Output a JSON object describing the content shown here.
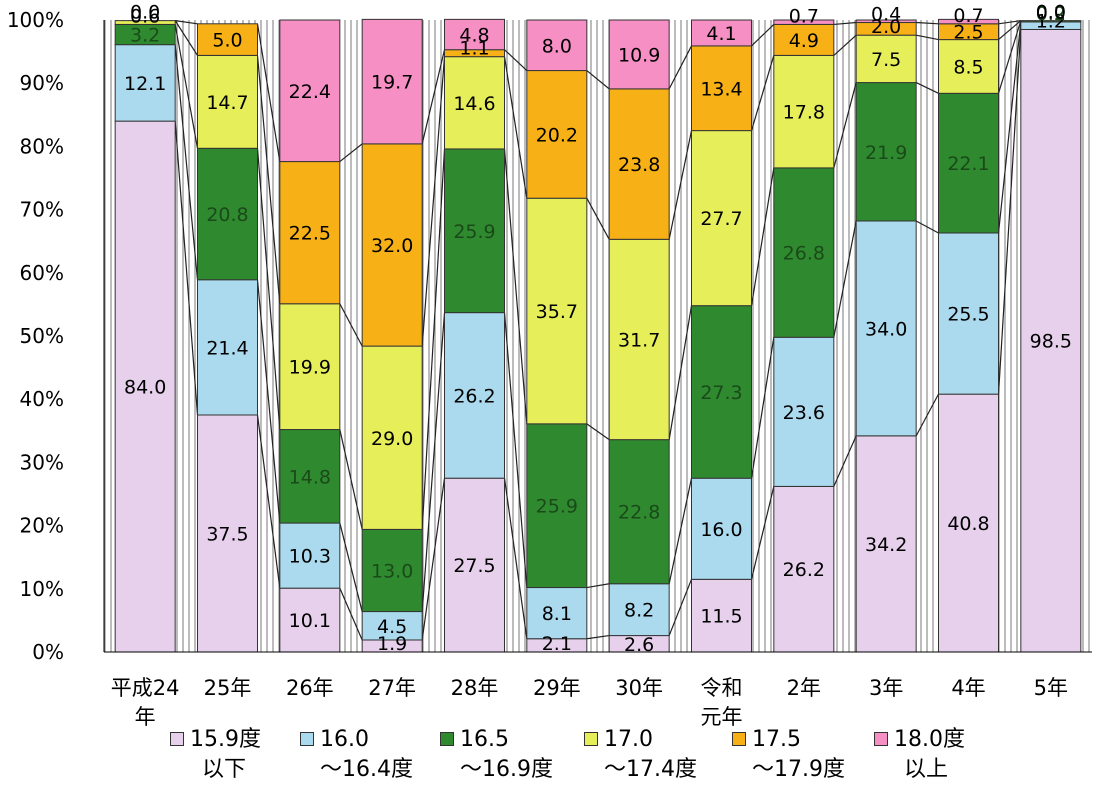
{
  "chart_data": {
    "type": "bar",
    "stacked": true,
    "y_tick_labels": [
      "0%",
      "10%",
      "20%",
      "30%",
      "40%",
      "50%",
      "60%",
      "70%",
      "80%",
      "90%",
      "100%"
    ],
    "ylim": [
      0,
      100
    ],
    "categories": [
      {
        "line1": "平成24",
        "line2": "年"
      },
      {
        "line1": "25年",
        "line2": ""
      },
      {
        "line1": "26年",
        "line2": ""
      },
      {
        "line1": "27年",
        "line2": ""
      },
      {
        "line1": "28年",
        "line2": ""
      },
      {
        "line1": "29年",
        "line2": ""
      },
      {
        "line1": "30年",
        "line2": ""
      },
      {
        "line1": "令和",
        "line2": "元年"
      },
      {
        "line1": "2年",
        "line2": ""
      },
      {
        "line1": "3年",
        "line2": ""
      },
      {
        "line1": "4年",
        "line2": ""
      },
      {
        "line1": "5年",
        "line2": ""
      }
    ],
    "series": [
      {
        "name": "15.9度以下",
        "legend_line1": "15.9度",
        "legend_line2": "以下",
        "color": "#E6D0EC",
        "values": [
          84.0,
          37.5,
          10.1,
          1.9,
          27.5,
          2.1,
          2.6,
          11.5,
          26.2,
          34.2,
          40.8,
          98.5
        ]
      },
      {
        "name": "16.0～16.4度",
        "legend_line1": "16.0",
        "legend_line2": "～16.4度",
        "color": "#ABD9EE",
        "values": [
          12.1,
          21.4,
          10.3,
          4.5,
          26.2,
          8.1,
          8.2,
          16.0,
          23.6,
          34.0,
          25.5,
          1.2
        ]
      },
      {
        "name": "16.5～16.9度",
        "legend_line1": "16.5",
        "legend_line2": "～16.9度",
        "color": "#2F8A2F",
        "values": [
          3.2,
          20.8,
          14.8,
          13.0,
          25.9,
          25.9,
          22.8,
          27.3,
          26.8,
          21.9,
          22.1,
          0.2
        ]
      },
      {
        "name": "17.0～17.4度",
        "legend_line1": "17.0",
        "legend_line2": "～17.4度",
        "color": "#E6EE5A",
        "values": [
          0.6,
          14.7,
          19.9,
          29.0,
          14.6,
          35.7,
          31.7,
          27.7,
          17.8,
          7.5,
          8.5,
          0.0
        ]
      },
      {
        "name": "17.5～17.9度",
        "legend_line1": "17.5",
        "legend_line2": "～17.9度",
        "color": "#F7B116",
        "values": [
          0.0,
          5.0,
          22.5,
          32.0,
          1.1,
          20.2,
          23.8,
          13.4,
          4.9,
          2.0,
          2.5,
          0.0
        ]
      },
      {
        "name": "18.0度以上",
        "legend_line1": "18.0度",
        "legend_line2": "以上",
        "color": "#F58FC4",
        "values": [
          0.0,
          0.0,
          22.4,
          19.7,
          4.8,
          8.0,
          10.9,
          4.1,
          0.7,
          0.4,
          0.7,
          0.0
        ]
      }
    ],
    "data_labels": [
      [
        "84.0",
        "37.5",
        "10.1",
        "1.9",
        "27.5",
        "2.1",
        "2.6",
        "11.5",
        "26.2",
        "34.2",
        "40.8",
        "98.5"
      ],
      [
        "12.1",
        "21.4",
        "10.3",
        "4.5",
        "26.2",
        "8.1",
        "8.2",
        "16.0",
        "23.6",
        "34.0",
        "25.5",
        "1.2"
      ],
      [
        "3.2",
        "20.8",
        "14.8",
        "13.0",
        "25.9",
        "25.9",
        "22.8",
        "27.3",
        "26.8",
        "21.9",
        "22.1",
        "0.2"
      ],
      [
        "0.6",
        "14.7",
        "19.9",
        "29.0",
        "14.6",
        "35.7",
        "31.7",
        "27.7",
        "17.8",
        "7.5",
        "8.5",
        "0.0"
      ],
      [
        "0.0",
        "5.0",
        "22.5",
        "32.0",
        "1.1",
        "20.2",
        "23.8",
        "13.4",
        "4.9",
        "2.0",
        "2.5",
        "0.0"
      ],
      [
        "",
        "",
        "22.4",
        "19.7",
        "4.8",
        "8.0",
        "10.9",
        "4.1",
        "0.7",
        "0.4",
        "0.7",
        ""
      ]
    ],
    "grid": false,
    "legend_position": "bottom",
    "series_connector_lines": true
  }
}
